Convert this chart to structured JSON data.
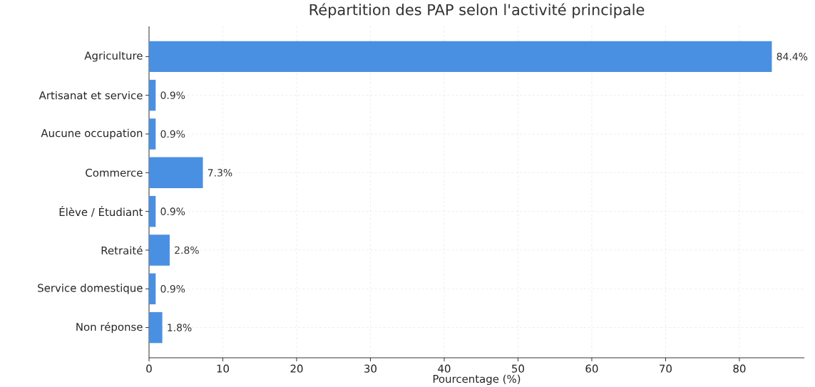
{
  "chart_data": {
    "type": "bar",
    "orientation": "horizontal",
    "title": "Répartition des PAP selon l'activité principale",
    "xlabel": "Pourcentage (%)",
    "categories": [
      "Agriculture",
      "Artisanat et service",
      "Aucune occupation",
      "Commerce",
      "Élève / Étudiant",
      "Retraité",
      "Service domestique",
      "Non réponse"
    ],
    "values": [
      84.4,
      0.9,
      0.9,
      7.3,
      0.9,
      2.8,
      0.9,
      1.8
    ],
    "value_labels": [
      "84.4%",
      "0.9%",
      "0.9%",
      "7.3%",
      "0.9%",
      "2.8%",
      "0.9%",
      "1.8%"
    ],
    "color": "#4a90e2",
    "xlim": [
      0,
      88.8
    ],
    "xticks": [
      0,
      10,
      20,
      30,
      40,
      50,
      60,
      70,
      80
    ],
    "grid": true
  }
}
